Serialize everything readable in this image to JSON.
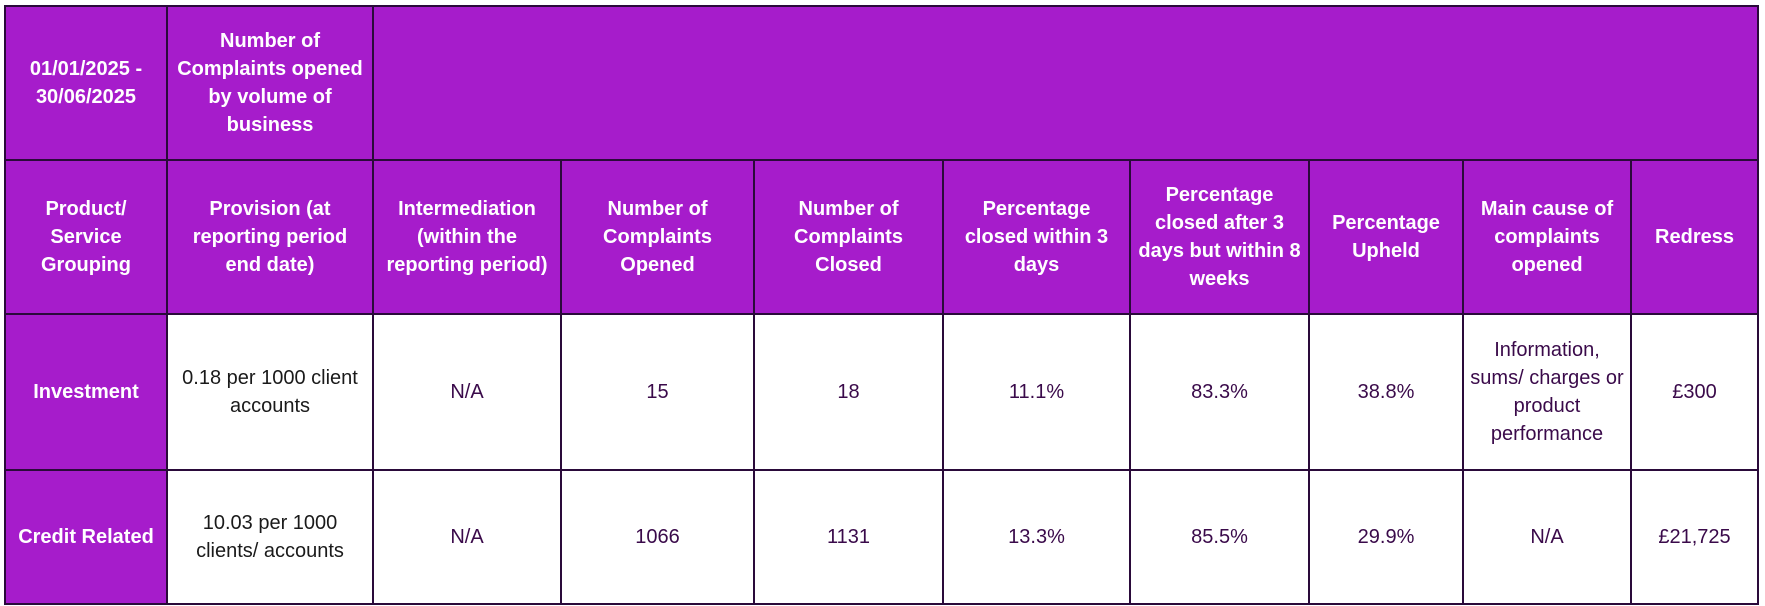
{
  "table": {
    "period": "01/01/2025 - 30/06/2025",
    "top_header": "Number of Complaints opened by volume of business",
    "columns": [
      "Product/ Service Grouping",
      "Provision (at reporting period end date)",
      "Intermediation (within the reporting period)",
      "Number of Complaints Opened",
      "Number of Complaints Closed",
      "Percentage closed within 3 days",
      "Percentage closed after 3 days but within 8 weeks",
      "Percentage Upheld",
      "Main cause of complaints opened",
      "Redress"
    ],
    "rows": [
      {
        "grouping": "Investment",
        "provision": "0.18 per 1000 client accounts",
        "intermediation": "N/A",
        "opened": "15",
        "closed": "18",
        "within_3_days": "11.1%",
        "within_8_weeks": "83.3%",
        "upheld": "38.8%",
        "main_cause": "Information, sums/ charges or product performance",
        "redress": "£300"
      },
      {
        "grouping": "Credit Related",
        "provision": "10.03 per 1000 clients/ accounts",
        "intermediation": "N/A",
        "opened": "1066",
        "closed": "1131",
        "within_3_days": "13.3%",
        "within_8_weeks": "85.5%",
        "upheld": "29.9%",
        "main_cause": "N/A",
        "redress": "£21,725"
      }
    ]
  },
  "colors": {
    "header_background": "#a61ccb",
    "border": "#2a0a3a",
    "cell_text": "#3a0a4a"
  }
}
